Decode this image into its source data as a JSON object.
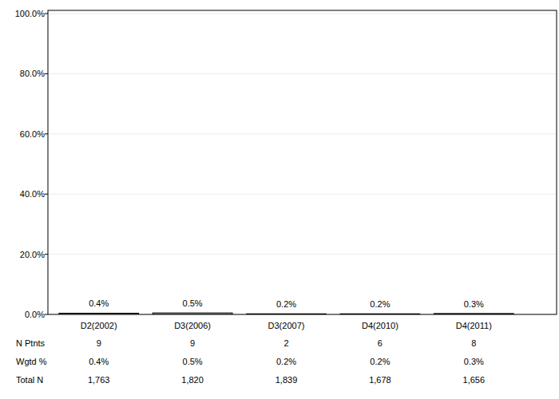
{
  "chart_data": {
    "type": "bar",
    "categories": [
      "D2(2002)",
      "D3(2006)",
      "D3(2007)",
      "D4(2010)",
      "D4(2011)"
    ],
    "values": [
      0.4,
      0.5,
      0.2,
      0.2,
      0.3
    ],
    "value_labels": [
      "0.4%",
      "0.5%",
      "0.2%",
      "0.2%",
      "0.3%"
    ],
    "data_labels": true,
    "color": "#d0d0d0",
    "ylim": [
      0,
      100
    ],
    "yticks": [
      {
        "value": 0,
        "label": "0.0%"
      },
      {
        "value": 20,
        "label": "20.0%"
      },
      {
        "value": 40,
        "label": "40.0%"
      },
      {
        "value": 60,
        "label": "60.0%"
      },
      {
        "value": 80,
        "label": "80.0%"
      },
      {
        "value": 100,
        "label": "100.0%"
      }
    ],
    "grid": true,
    "table": {
      "rows": [
        {
          "label": "N Ptnts",
          "values": [
            9,
            9,
            2,
            6,
            8
          ]
        },
        {
          "label": "Wgtd %",
          "values": [
            0.4,
            0.5,
            0.2,
            0.2,
            0.3
          ],
          "value_labels": [
            "0.4%",
            "0.5%",
            "0.2%",
            "0.2%",
            "0.3%"
          ]
        },
        {
          "label": "Total N",
          "values": [
            1763,
            1820,
            1839,
            1678,
            1656
          ],
          "value_labels": [
            "1,763",
            "1,820",
            "1,839",
            "1,678",
            "1,656"
          ]
        }
      ]
    }
  }
}
